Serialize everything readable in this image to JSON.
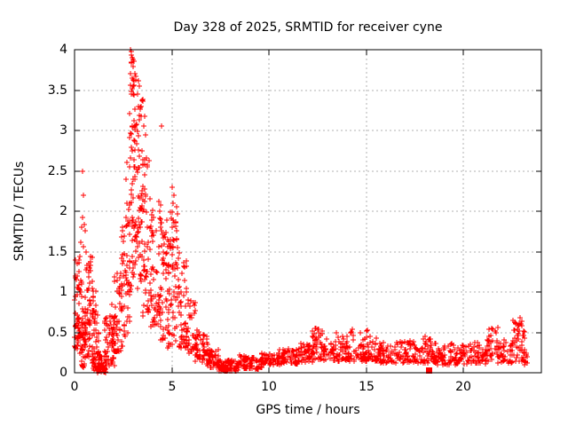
{
  "title": "Day 328 of 2025, SRMTID for receiver cyne",
  "chart_data": {
    "type": "scatter",
    "title": "Day 328 of 2025, SRMTID for receiver cyne",
    "xlabel": "GPS time / hours",
    "ylabel": "SRMTID / TECUs",
    "xlim": [
      0,
      24
    ],
    "ylim": [
      0,
      4
    ],
    "x_ticks": [
      0,
      5,
      10,
      15,
      20
    ],
    "x_tick_labels": [
      "0",
      "5",
      "10",
      "15",
      "20"
    ],
    "y_ticks": [
      0,
      0.5,
      1,
      1.5,
      2,
      2.5,
      3,
      3.5,
      4
    ],
    "y_tick_labels": [
      "0",
      "0.5",
      "1",
      "1.5",
      "2",
      "2.5",
      "3",
      "3.5",
      "4"
    ],
    "grid": true,
    "legend": "none",
    "marker": "plus",
    "marker_color": "#ff0000",
    "grid_color": "#b0b0b0",
    "axis_color": "#000000",
    "seed": 328,
    "description": "SRMTID vs GPS time; ~30s samples. Quiet start 0-1h (0.3-1.2), dip to ~0 near 1.2-1.6h, large disturbance peaking at 4.0 TECUs near 2.9-3.2h, decay through 4-7h, minimum ~0.05 near 8h, then noisy band 0.15-0.35 with spikes to ~0.5-0.65 until data end ~23.3h.",
    "bands": [
      [
        0.0,
        0.25,
        40,
        0.3,
        1.25,
        1.2
      ],
      [
        0.05,
        0.3,
        12,
        0.9,
        1.45,
        1.0
      ],
      [
        0.25,
        0.6,
        55,
        0.05,
        1.15,
        1.3
      ],
      [
        0.55,
        0.95,
        60,
        0.2,
        1.5,
        1.3
      ],
      [
        0.9,
        1.25,
        50,
        0.02,
        0.55,
        1.8
      ],
      [
        0.95,
        1.2,
        16,
        0.5,
        1.1,
        1.0
      ],
      [
        1.2,
        1.65,
        45,
        0.0,
        0.22,
        1.5
      ],
      [
        1.55,
        2.05,
        50,
        0.08,
        0.75,
        1.4
      ],
      [
        1.9,
        2.45,
        55,
        0.25,
        1.25,
        1.2
      ],
      [
        2.4,
        2.85,
        55,
        0.45,
        2.1,
        1.1
      ],
      [
        2.8,
        3.15,
        60,
        0.9,
        4.0,
        0.85
      ],
      [
        3.1,
        3.5,
        60,
        0.8,
        3.5,
        1.0
      ],
      [
        3.45,
        3.95,
        55,
        0.7,
        2.7,
        1.15
      ],
      [
        3.9,
        4.45,
        55,
        0.55,
        2.15,
        1.1
      ],
      [
        4.4,
        4.85,
        50,
        0.4,
        1.9,
        1.2
      ],
      [
        4.8,
        5.3,
        55,
        0.3,
        1.75,
        1.25
      ],
      [
        4.9,
        5.35,
        12,
        1.7,
        2.3,
        1.0
      ],
      [
        5.3,
        5.75,
        45,
        0.3,
        1.5,
        1.4
      ],
      [
        5.7,
        6.25,
        45,
        0.22,
        0.95,
        1.4
      ],
      [
        6.2,
        6.85,
        45,
        0.13,
        0.55,
        1.3
      ],
      [
        6.8,
        7.45,
        50,
        0.06,
        0.3,
        1.3
      ],
      [
        7.4,
        8.45,
        65,
        0.02,
        0.16,
        1.2
      ],
      [
        8.4,
        8.85,
        32,
        0.05,
        0.23,
        1.2
      ],
      [
        8.8,
        9.65,
        50,
        0.04,
        0.19,
        1.2
      ],
      [
        9.6,
        10.55,
        55,
        0.09,
        0.25,
        1.1
      ],
      [
        10.5,
        11.55,
        60,
        0.11,
        0.3,
        1.1
      ],
      [
        11.5,
        12.25,
        45,
        0.13,
        0.37,
        1.1
      ],
      [
        12.2,
        12.75,
        38,
        0.16,
        0.55,
        1.3
      ],
      [
        12.7,
        14.05,
        80,
        0.14,
        0.45,
        1.4
      ],
      [
        14.0,
        15.55,
        90,
        0.14,
        0.52,
        1.5
      ],
      [
        15.5,
        17.55,
        110,
        0.12,
        0.4,
        1.4
      ],
      [
        17.5,
        18.55,
        55,
        0.11,
        0.44,
        1.4
      ],
      [
        18.5,
        20.55,
        100,
        0.1,
        0.37,
        1.4
      ],
      [
        20.5,
        21.25,
        38,
        0.11,
        0.4,
        1.3
      ],
      [
        21.2,
        21.75,
        32,
        0.14,
        0.56,
        1.3
      ],
      [
        21.7,
        22.55,
        45,
        0.12,
        0.42,
        1.3
      ],
      [
        22.5,
        23.15,
        42,
        0.14,
        0.66,
        1.2
      ],
      [
        23.05,
        23.3,
        12,
        0.1,
        0.3,
        1.2
      ]
    ],
    "points": [
      [
        0.41,
        2.5
      ],
      [
        0.46,
        2.2
      ],
      [
        0.41,
        1.92
      ],
      [
        0.37,
        1.8
      ],
      [
        0.5,
        1.84
      ],
      [
        0.55,
        1.76
      ],
      [
        0.3,
        1.62
      ],
      [
        0.45,
        1.56
      ],
      [
        0.6,
        1.5
      ],
      [
        0.15,
        1.35
      ],
      [
        2.88,
        4.0
      ],
      [
        2.92,
        3.98
      ],
      [
        2.9,
        3.93
      ],
      [
        2.95,
        3.9
      ],
      [
        2.93,
        3.85
      ],
      [
        3.0,
        3.79
      ],
      [
        2.98,
        3.65
      ],
      [
        3.05,
        3.62
      ],
      [
        3.0,
        3.55
      ],
      [
        3.02,
        3.45
      ],
      [
        3.3,
        3.62
      ],
      [
        3.35,
        3.55
      ],
      [
        3.5,
        3.38
      ],
      [
        3.28,
        3.3
      ],
      [
        3.6,
        3.18
      ],
      [
        3.55,
        3.05
      ],
      [
        3.65,
        2.95
      ],
      [
        3.45,
        2.75
      ],
      [
        2.7,
        2.6
      ],
      [
        2.65,
        2.4
      ],
      [
        3.75,
        2.55
      ],
      [
        4.45,
        3.05
      ],
      [
        5.0,
        2.3
      ],
      [
        5.1,
        2.2
      ],
      [
        5.05,
        2.1
      ],
      [
        12.42,
        0.55
      ],
      [
        13.45,
        0.5
      ],
      [
        14.3,
        0.54
      ],
      [
        15.05,
        0.53
      ],
      [
        18.0,
        0.45
      ],
      [
        21.45,
        0.55
      ],
      [
        22.85,
        0.62
      ],
      [
        22.9,
        0.68
      ],
      [
        22.95,
        0.6
      ]
    ],
    "dense_block": {
      "t": 18.22,
      "v": 0.03,
      "w": 7,
      "h": 7
    }
  }
}
